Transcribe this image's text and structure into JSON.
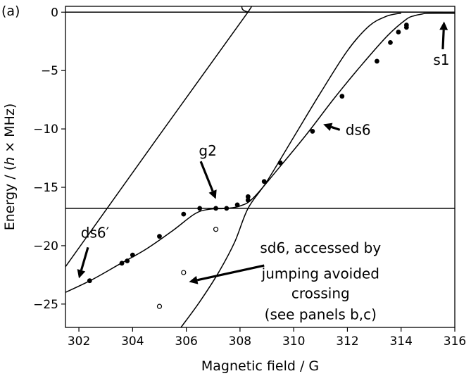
{
  "chart_data": {
    "type": "line",
    "panel_label": "(a)",
    "xlabel": "Magnetic field / G",
    "ylabel": "Energy / (h × MHz)",
    "xlim": [
      301.5,
      316
    ],
    "ylim": [
      -27,
      0.5
    ],
    "xticks": [
      302,
      304,
      306,
      308,
      310,
      312,
      314,
      316
    ],
    "yticks": [
      0,
      -5,
      -10,
      -15,
      -20,
      -25
    ],
    "grid": false,
    "series": [
      {
        "style": "solid-line",
        "x": [
          301.5,
          316
        ],
        "y": [
          0,
          0
        ]
      },
      {
        "style": "solid-line",
        "x": [
          301.5,
          316
        ],
        "y": [
          -16.8,
          -16.8
        ]
      },
      {
        "style": "solid-line",
        "x": [
          301.5,
          308.2,
          308.5,
          316
        ],
        "y": [
          -21.8,
          -0.3,
          0,
          0
        ]
      },
      {
        "style": "solid-line",
        "x": [
          305.8,
          306.5,
          307.2,
          307.8,
          308.3,
          309,
          310,
          311,
          312,
          312.8,
          313.4,
          313.8,
          314.0
        ],
        "y": [
          -27,
          -24.8,
          -22.3,
          -19.7,
          -16.8,
          -14.5,
          -10.7,
          -6.9,
          -3.3,
          -1.2,
          -0.4,
          -0.15,
          -0.1
        ]
      },
      {
        "style": "solid-line",
        "x": [
          301.5,
          302.5,
          303.5,
          304.5,
          305.5,
          306.3,
          306.8,
          307.5,
          308.0,
          308.5,
          309.5,
          310.5,
          311.5,
          312.5,
          313.5,
          314.2,
          314.5,
          314.8,
          315.0,
          316
        ],
        "y": [
          -24.0,
          -22.9,
          -21.6,
          -20.3,
          -18.7,
          -17.3,
          -16.9,
          -16.8,
          -16.6,
          -15.9,
          -13.2,
          -10.4,
          -7.4,
          -4.6,
          -2.0,
          -0.6,
          -0.3,
          -0.15,
          -0.1,
          -0.1
        ]
      },
      {
        "style": "filled-points",
        "x": [
          302.4,
          303.6,
          303.8,
          304.0,
          305.0,
          305.9,
          306.5,
          307.1,
          307.5,
          307.9,
          308.3,
          308.3,
          308.9,
          309.5,
          310.7,
          311.8,
          313.1,
          313.6,
          313.9,
          314.2,
          314.2
        ],
        "y": [
          -23.0,
          -21.5,
          -21.3,
          -20.8,
          -19.2,
          -17.3,
          -16.8,
          -16.8,
          -16.8,
          -16.5,
          -16.1,
          -15.8,
          -14.5,
          -12.9,
          -10.2,
          -7.2,
          -4.2,
          -2.6,
          -1.7,
          -1.3,
          -1.1
        ]
      },
      {
        "style": "open-points",
        "x": [
          305.0,
          305.9,
          307.1
        ],
        "y": [
          -25.2,
          -22.3,
          -18.6
        ]
      }
    ],
    "annotations": [
      {
        "text": "s1",
        "x": 315.5,
        "y": -4.5,
        "arrow_to": [
          315.6,
          -0.8
        ]
      },
      {
        "text": "ds6",
        "x": 312.4,
        "y": -10.5,
        "arrow_to": [
          311.1,
          -9.6
        ]
      },
      {
        "text": "g2",
        "x": 306.8,
        "y": -12.3,
        "arrow_to": [
          307.1,
          -16.0
        ]
      },
      {
        "text": "ds6′",
        "x": 302.6,
        "y": -19.3,
        "arrow_to": [
          302.0,
          -22.8
        ]
      },
      {
        "text": "sd6, accessed by",
        "x": 311.0,
        "y": -20.6
      },
      {
        "text": "jumping avoided",
        "x": 311.0,
        "y": -22.8
      },
      {
        "text": "crossing",
        "x": 311.0,
        "y": -24.5
      },
      {
        "text": "(see panels b,c)",
        "x": 311.0,
        "y": -26.3
      }
    ],
    "sd6_arrow": {
      "from": [
        308.9,
        -21.7
      ],
      "to": [
        306.1,
        -23.1
      ]
    }
  }
}
